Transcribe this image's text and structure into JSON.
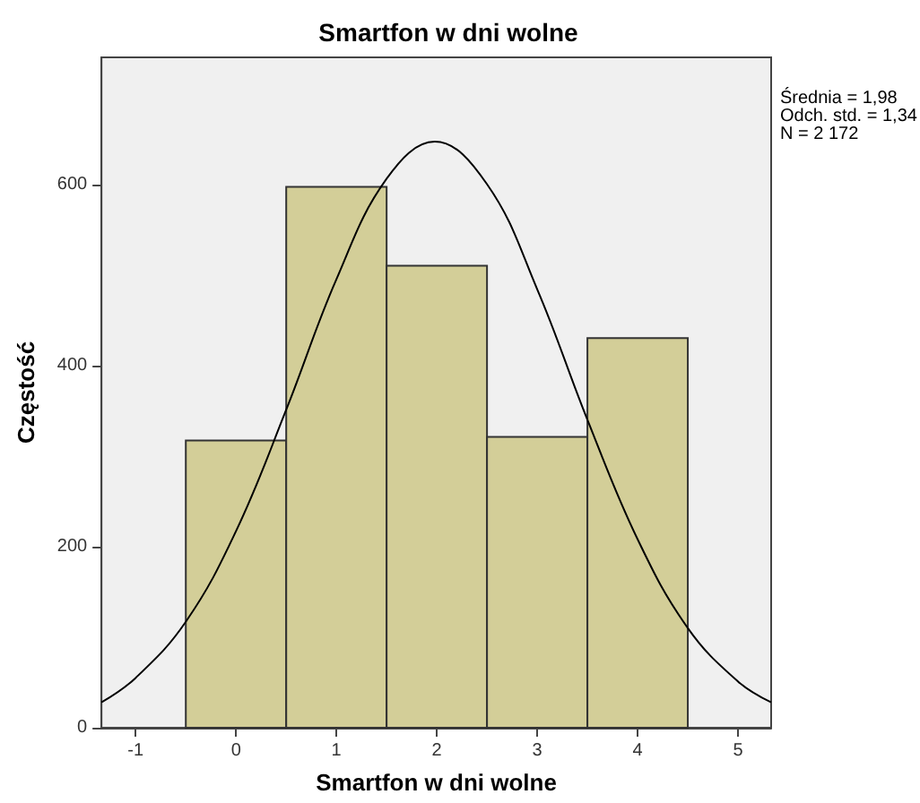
{
  "chart_data": {
    "type": "histogram",
    "title": "Smartfon w dni wolne",
    "xlabel": "Smartfon w dni wolne",
    "ylabel": "Częstość",
    "bins": [
      -0.5,
      0.5,
      1.5,
      2.5,
      3.5,
      4.5
    ],
    "values": [
      317,
      597,
      510,
      321,
      430
    ],
    "color": "#d3ce98",
    "xlim": [
      -1.34,
      5.33
    ],
    "xticks": [
      -1,
      0,
      1,
      2,
      3,
      4,
      5
    ],
    "ylim": [
      0,
      740
    ],
    "yticks": [
      0,
      200,
      400,
      600
    ],
    "grid": false,
    "series": [
      {
        "type": "line",
        "color": "#000000",
        "x": [
          -1.34,
          -1,
          -0.5,
          0,
          0.5,
          1,
          1.5,
          1.98,
          2.5,
          3,
          3.5,
          4,
          4.5,
          5,
          5.33
        ],
        "values": [
          28,
          55,
          117,
          217,
          351,
          495,
          606,
          647,
          600,
          484,
          340,
          208,
          110,
          51,
          28
        ],
        "marker": "none"
      }
    ],
    "annotations": [
      "Średnia = 1,98",
      "Odch. std. = 1,34",
      "N = 2 172"
    ]
  }
}
